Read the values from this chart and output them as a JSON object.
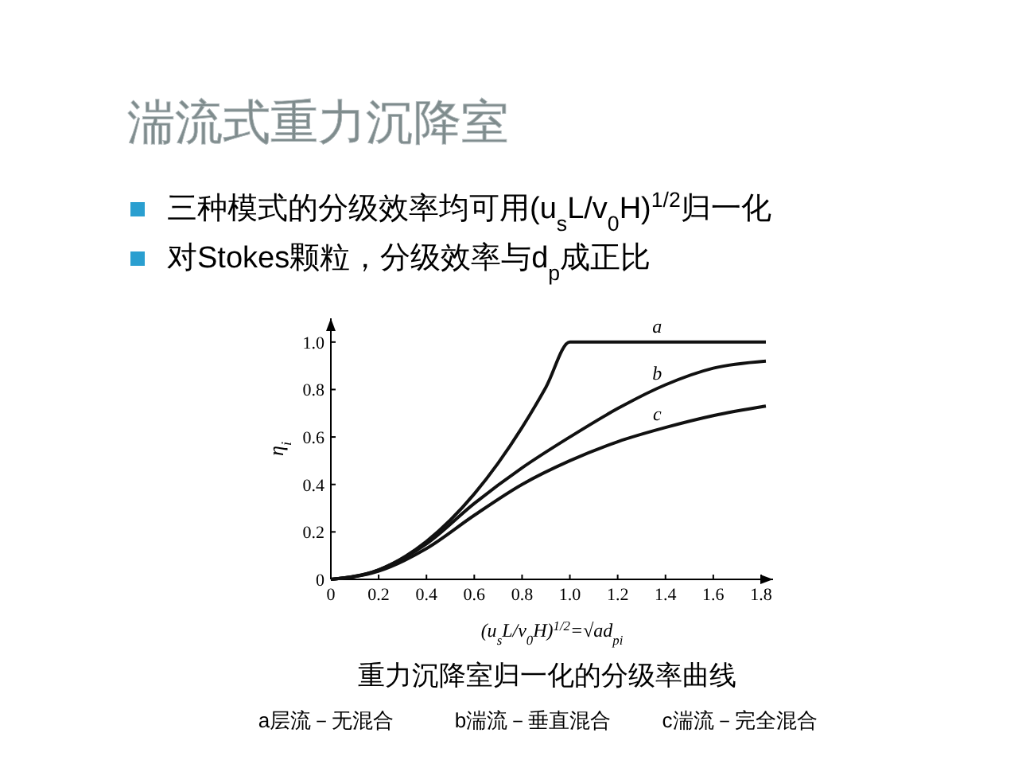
{
  "chart_data": {
    "type": "line",
    "title": "湍流式重力沉降室",
    "annotations": [
      "三种模式的分级效率均可用(u$_{s}$L/v$_{0}$H)$^{1/2}$归一化",
      "对Stokes颗粒，分级效率与d$_{p}$成正比",
      "重力沉降室归一化的分级率曲线",
      "a层流－无混合",
      "b湍流－垂直混合",
      "c湍流－完全混合"
    ],
    "xlabel": "(u$_{s}$L/v$_{0}$H)$^{1/2}$=√ad$_{pi}$",
    "ylabel": "η$_{i}$",
    "xlim": [
      0,
      1.85
    ],
    "ylim": [
      0,
      1.1
    ],
    "xticks": [
      0,
      0.2,
      0.4,
      0.6,
      0.8,
      {
        "value": 1,
        "label": "1.0"
      },
      1.2,
      1.4,
      1.6,
      1.8
    ],
    "yticks": [
      0,
      0.2,
      0.4,
      0.6,
      0.8,
      {
        "value": 1,
        "label": "1.0"
      }
    ],
    "grid": false,
    "marker": "none",
    "line_style": "solid",
    "series": [
      {
        "name": "a",
        "color": "#111111",
        "x": [
          0,
          0.2,
          0.4,
          0.6,
          0.7,
          0.8,
          0.9,
          1.0,
          1.82
        ],
        "values": [
          0,
          0.04,
          0.16,
          0.36,
          0.49,
          0.64,
          0.81,
          1.0,
          1.0
        ]
      },
      {
        "name": "b",
        "color": "#111111",
        "x": [
          0,
          0.2,
          0.4,
          0.6,
          0.8,
          1.0,
          1.2,
          1.4,
          1.6,
          1.82
        ],
        "values": [
          0,
          0.04,
          0.15,
          0.32,
          0.47,
          0.6,
          0.72,
          0.82,
          0.89,
          0.92
        ]
      },
      {
        "name": "c",
        "color": "#111111",
        "x": [
          0,
          0.2,
          0.4,
          0.6,
          0.8,
          1.0,
          1.2,
          1.4,
          1.6,
          1.82
        ],
        "values": [
          0,
          0.035,
          0.13,
          0.27,
          0.4,
          0.5,
          0.58,
          0.64,
          0.69,
          0.73
        ]
      }
    ]
  }
}
